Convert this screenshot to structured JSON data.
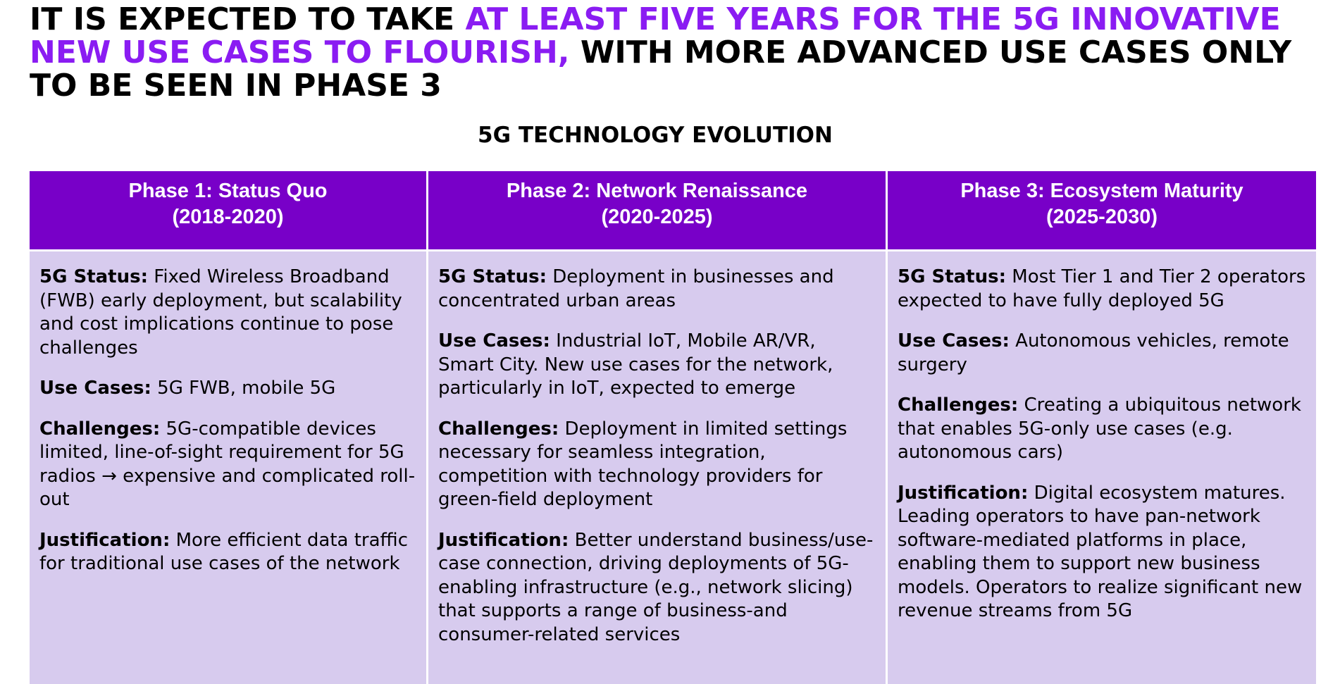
{
  "headline": {
    "part1": "IT IS EXPECTED TO TAKE ",
    "part2": "AT LEAST FIVE YEARS FOR THE 5G INNOVATIVE NEW USE CASES TO FLOURISH,",
    "part3": " WITH MORE ADVANCED USE CASES ONLY TO BE SEEN IN PHASE 3"
  },
  "subtitle": "5G TECHNOLOGY EVOLUTION",
  "colors": {
    "accent": "#8a1cf2",
    "header_bg": "#7800c8",
    "body_bg": "#d7cbee"
  },
  "phases": [
    {
      "title": "Phase 1: Status Quo",
      "years": "(2018-2020)",
      "entries": [
        {
          "label": "5G Status:",
          "text": " Fixed Wireless Broadband (FWB) early deployment, but scalability and cost implications continue to pose challenges"
        },
        {
          "label": "Use Cases:",
          "text": " 5G FWB, mobile 5G"
        },
        {
          "label": "Challenges:",
          "text": " 5G-compatible devices limited, line-of-sight requirement for 5G radios → expensive and complicated roll-out"
        },
        {
          "label": "Justification:",
          "text": " More efficient data traffic for traditional use cases of the network"
        }
      ]
    },
    {
      "title": "Phase 2: Network Renaissance",
      "years": "(2020-2025)",
      "entries": [
        {
          "label": "5G Status:",
          "text": " Deployment in businesses and concentrated urban areas"
        },
        {
          "label": "Use Cases:",
          "text": " Industrial IoT, Mobile AR/VR, Smart City. New use cases for the network, particularly in IoT, expected to emerge"
        },
        {
          "label": "Challenges:",
          "text": " Deployment in limited settings necessary for seamless integration, competition with technology providers for green-field deployment"
        },
        {
          "label": "Justification:",
          "text": " Better understand business/use-case connection, driving deployments of 5G-enabling infrastructure (e.g., network slicing) that supports a range of business-and consumer-related services"
        }
      ]
    },
    {
      "title": "Phase 3: Ecosystem Maturity",
      "years": "(2025-2030)",
      "entries": [
        {
          "label": "5G Status:",
          "text": " Most Tier 1 and Tier 2 operators expected to have fully deployed 5G"
        },
        {
          "label": "Use Cases:",
          "text": " Autonomous vehicles, remote surgery"
        },
        {
          "label": "Challenges:",
          "text": " Creating a ubiquitous network that enables 5G-only use cases (e.g. autonomous cars)"
        },
        {
          "label": "Justification:",
          "text": " Digital ecosystem matures. Leading operators to have pan-network software-mediated platforms in place, enabling them to support new business models. Operators to realize significant new revenue streams from 5G"
        }
      ]
    }
  ]
}
